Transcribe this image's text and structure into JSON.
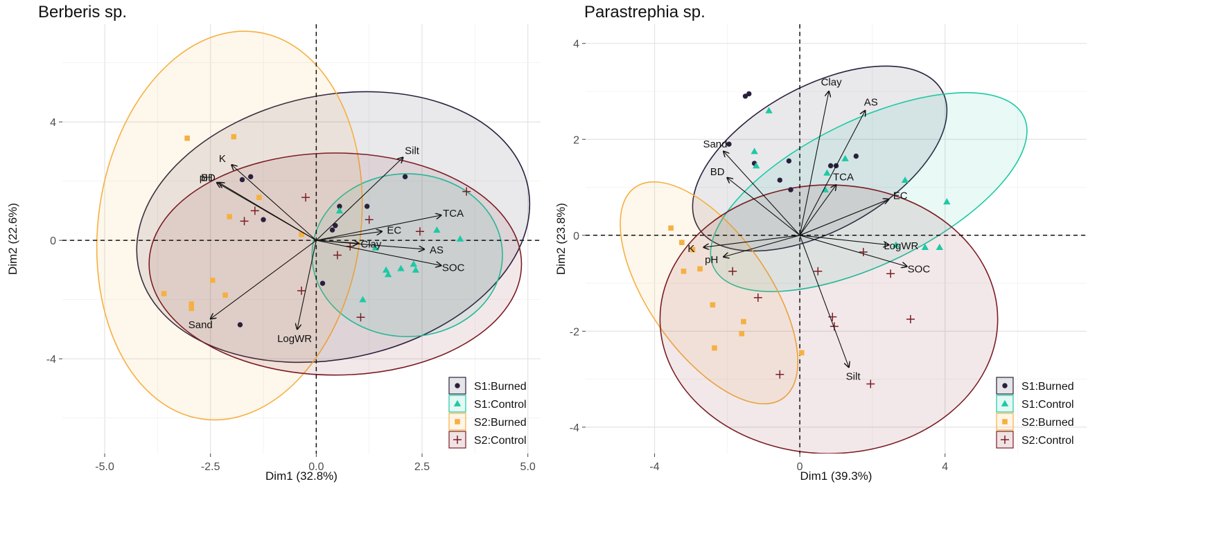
{
  "chart_data": [
    {
      "type": "scatter",
      "title": "Berberis sp.",
      "xlabel": "Dim1 (32.8%)",
      "ylabel": "Dim2 (22.6%)",
      "xlim": [
        -6.0,
        5.3
      ],
      "ylim": [
        -7.2,
        7.3
      ],
      "xticks": [
        -5.0,
        -2.5,
        0.0,
        2.5,
        5.0
      ],
      "xtick_labels": [
        "-5.0",
        "-2.5",
        "0.0",
        "2.5",
        "5.0"
      ],
      "yticks": [
        -4,
        0,
        4
      ],
      "ytick_labels": [
        "-4",
        "0",
        "4"
      ],
      "grid": true,
      "legend_position": "bottom-right",
      "series": [
        {
          "name": "S1:Burned",
          "marker": "circle",
          "color": "#2a1f3d",
          "points": [
            [
              -1.75,
              2.05
            ],
            [
              -1.55,
              2.15
            ],
            [
              -1.25,
              0.7
            ],
            [
              0.55,
              1.15
            ],
            [
              0.45,
              0.5
            ],
            [
              0.38,
              0.35
            ],
            [
              1.2,
              1.15
            ],
            [
              2.1,
              2.15
            ],
            [
              0.15,
              -1.45
            ],
            [
              -1.8,
              -2.85
            ]
          ],
          "ellipse": {
            "cx": 0.4,
            "cy": 0.45,
            "rx": 4.7,
            "ry": 4.45,
            "angle": 12
          }
        },
        {
          "name": "S1:Control",
          "marker": "triangle",
          "color": "#1dc9a4",
          "points": [
            [
              0.55,
              1.0
            ],
            [
              1.4,
              -0.25
            ],
            [
              1.65,
              -1.0
            ],
            [
              1.7,
              -1.15
            ],
            [
              2.0,
              -0.95
            ],
            [
              2.3,
              -0.8
            ],
            [
              2.35,
              -1.0
            ],
            [
              1.1,
              -2.0
            ],
            [
              2.85,
              0.35
            ],
            [
              3.4,
              0.05
            ]
          ],
          "ellipse": {
            "cx": 2.15,
            "cy": -0.5,
            "rx": 2.25,
            "ry": 2.75,
            "angle": 0
          }
        },
        {
          "name": "S2:Burned",
          "marker": "square",
          "color": "#f5b041",
          "points": [
            [
              -3.05,
              3.45
            ],
            [
              -1.95,
              3.5
            ],
            [
              -1.35,
              1.45
            ],
            [
              -2.05,
              0.8
            ],
            [
              -2.45,
              -1.35
            ],
            [
              -2.15,
              -1.85
            ],
            [
              -3.6,
              -1.8
            ],
            [
              -2.95,
              -2.15
            ],
            [
              -2.95,
              -2.3
            ],
            [
              -0.35,
              0.2
            ]
          ],
          "ellipse": {
            "cx": -2.05,
            "cy": 0.5,
            "rx": 3.1,
            "ry": 6.6,
            "angle": -8
          }
        },
        {
          "name": "S2:Control",
          "marker": "plus",
          "color": "#7b1c23",
          "points": [
            [
              -0.25,
              1.45
            ],
            [
              -1.45,
              1.0
            ],
            [
              -1.7,
              0.65
            ],
            [
              1.25,
              0.7
            ],
            [
              0.8,
              -0.2
            ],
            [
              0.5,
              -0.5
            ],
            [
              -0.35,
              -1.7
            ],
            [
              1.05,
              -2.6
            ],
            [
              3.55,
              1.65
            ],
            [
              2.45,
              0.3
            ]
          ],
          "ellipse": {
            "cx": 0.45,
            "cy": -0.8,
            "rx": 4.4,
            "ry": 3.75,
            "angle": 0
          }
        }
      ],
      "vectors": [
        {
          "label": "K",
          "x": -2.0,
          "y": 2.55
        },
        {
          "label": "pH",
          "x": -2.35,
          "y": 1.95
        },
        {
          "label": "BD",
          "x": -2.3,
          "y": 1.95
        },
        {
          "label": "Sand",
          "x": -2.5,
          "y": -2.65
        },
        {
          "label": "LogWR",
          "x": -0.45,
          "y": -3.0
        },
        {
          "label": "Silt",
          "x": 2.05,
          "y": 2.8
        },
        {
          "label": "EC",
          "x": 1.55,
          "y": 0.3
        },
        {
          "label": "TCA",
          "x": 2.95,
          "y": 0.85
        },
        {
          "label": "AS",
          "x": 2.55,
          "y": -0.3
        },
        {
          "label": "Clay",
          "x": 1.0,
          "y": -0.1
        },
        {
          "label": "SOC",
          "x": 2.95,
          "y": -0.85
        }
      ]
    },
    {
      "type": "scatter",
      "title": "Parastrephia sp.",
      "xlabel": "Dim1 (39.3%)",
      "ylabel": "Dim2 (23.8%)",
      "xlim": [
        -5.9,
        7.9
      ],
      "ylim": [
        -4.55,
        4.4
      ],
      "xticks": [
        -4,
        0,
        4
      ],
      "xtick_labels": [
        "-4",
        "0",
        "4"
      ],
      "yticks": [
        -4,
        -2,
        0,
        2,
        4
      ],
      "ytick_labels": [
        "-4",
        "-2",
        "0",
        "2",
        "4"
      ],
      "grid": true,
      "legend_position": "bottom-right",
      "series": [
        {
          "name": "S1:Burned",
          "marker": "circle",
          "color": "#2a1f3d",
          "points": [
            [
              -1.5,
              2.9
            ],
            [
              -1.4,
              2.95
            ],
            [
              -1.95,
              1.9
            ],
            [
              -1.25,
              1.5
            ],
            [
              -0.55,
              1.15
            ],
            [
              -0.3,
              1.55
            ],
            [
              -0.25,
              0.95
            ],
            [
              0.85,
              1.45
            ],
            [
              1.0,
              1.45
            ],
            [
              1.55,
              1.65
            ]
          ],
          "ellipse": {
            "cx": 0.55,
            "cy": 1.6,
            "rx": 3.85,
            "ry": 1.5,
            "angle": 29
          }
        },
        {
          "name": "S1:Control",
          "marker": "triangle",
          "color": "#1dc9a4",
          "points": [
            [
              -0.85,
              2.6
            ],
            [
              -1.25,
              1.75
            ],
            [
              -1.2,
              1.45
            ],
            [
              0.75,
              1.3
            ],
            [
              0.7,
              0.95
            ],
            [
              1.25,
              1.6
            ],
            [
              2.9,
              1.15
            ],
            [
              4.05,
              0.7
            ],
            [
              2.65,
              -0.2
            ],
            [
              3.45,
              -0.25
            ],
            [
              3.85,
              -0.25
            ]
          ],
          "ellipse": {
            "cx": 1.9,
            "cy": 0.9,
            "rx": 4.75,
            "ry": 1.5,
            "angle": 26
          }
        },
        {
          "name": "S2:Burned",
          "marker": "square",
          "color": "#f5b041",
          "points": [
            [
              -3.55,
              0.15
            ],
            [
              -3.25,
              -0.15
            ],
            [
              -2.95,
              -0.3
            ],
            [
              -3.2,
              -0.75
            ],
            [
              -2.75,
              -0.7
            ],
            [
              -2.4,
              -1.45
            ],
            [
              -1.55,
              -1.8
            ],
            [
              -1.6,
              -2.05
            ],
            [
              -2.35,
              -2.35
            ],
            [
              0.05,
              -2.45
            ]
          ],
          "ellipse": {
            "cx": -2.5,
            "cy": -1.2,
            "rx": 3.55,
            "ry": 1.25,
            "angle": -55
          }
        },
        {
          "name": "S2:Control",
          "marker": "plus",
          "color": "#7b1c23",
          "points": [
            [
              -1.85,
              -0.75
            ],
            [
              -1.15,
              -1.3
            ],
            [
              0.5,
              -0.75
            ],
            [
              1.75,
              -0.35
            ],
            [
              2.5,
              -0.8
            ],
            [
              0.9,
              -1.7
            ],
            [
              0.95,
              -1.9
            ],
            [
              3.05,
              -1.75
            ],
            [
              -0.55,
              -2.9
            ],
            [
              1.95,
              -3.1
            ]
          ],
          "ellipse": {
            "cx": 0.8,
            "cy": -1.75,
            "rx": 4.65,
            "ry": 2.8,
            "angle": 0
          }
        }
      ],
      "vectors": [
        {
          "label": "Clay",
          "x": 0.8,
          "y": 3.0
        },
        {
          "label": "AS",
          "x": 1.8,
          "y": 2.6
        },
        {
          "label": "Sand",
          "x": -2.1,
          "y": 1.75
        },
        {
          "label": "BD",
          "x": -2.0,
          "y": 1.2
        },
        {
          "label": "TCA",
          "x": 1.0,
          "y": 1.05
        },
        {
          "label": "EC",
          "x": 2.45,
          "y": 0.75
        },
        {
          "label": "LogWR",
          "x": 2.45,
          "y": -0.2
        },
        {
          "label": "SOC",
          "x": 2.95,
          "y": -0.65
        },
        {
          "label": "K",
          "x": -2.65,
          "y": -0.25
        },
        {
          "label": "pH",
          "x": -2.1,
          "y": -0.45
        },
        {
          "label": "Silt",
          "x": 1.35,
          "y": -2.75
        }
      ]
    }
  ]
}
